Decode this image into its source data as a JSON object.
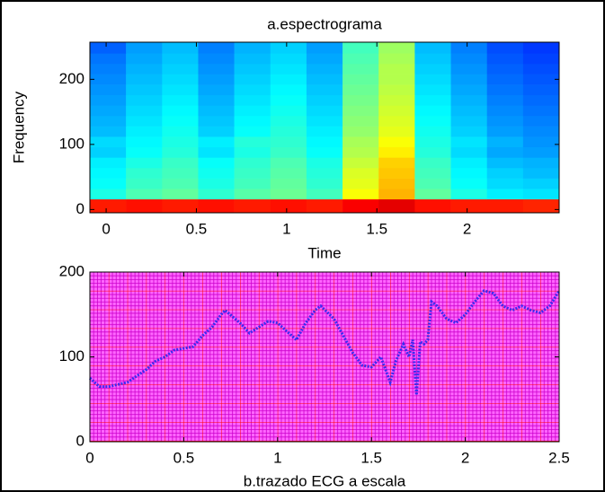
{
  "chart_data": [
    {
      "type": "heatmap",
      "title": "a.espectrograma",
      "xlabel": "Time",
      "ylabel": "Frequency",
      "x": [
        0.01,
        0.21,
        0.41,
        0.61,
        0.81,
        1.01,
        1.21,
        1.41,
        1.61,
        1.81,
        2.01,
        2.21,
        2.41
      ],
      "y": [
        8,
        24,
        40,
        56,
        72,
        88,
        104,
        120,
        136,
        152,
        168,
        184,
        200,
        216,
        232,
        248
      ],
      "z": [
        [
          0.85,
          0.86,
          0.85,
          0.86,
          0.85,
          0.86,
          0.85,
          0.88,
          0.9,
          0.86,
          0.85,
          0.85,
          0.84
        ],
        [
          0.4,
          0.45,
          0.47,
          0.42,
          0.46,
          0.48,
          0.44,
          0.62,
          0.7,
          0.47,
          0.4,
          0.36,
          0.35
        ],
        [
          0.38,
          0.43,
          0.45,
          0.4,
          0.44,
          0.47,
          0.42,
          0.6,
          0.69,
          0.45,
          0.38,
          0.34,
          0.33
        ],
        [
          0.37,
          0.42,
          0.44,
          0.39,
          0.43,
          0.46,
          0.41,
          0.59,
          0.68,
          0.44,
          0.37,
          0.33,
          0.31
        ],
        [
          0.36,
          0.4,
          0.43,
          0.38,
          0.42,
          0.45,
          0.4,
          0.57,
          0.67,
          0.43,
          0.36,
          0.31,
          0.3
        ],
        [
          0.33,
          0.38,
          0.41,
          0.35,
          0.4,
          0.43,
          0.38,
          0.55,
          0.64,
          0.41,
          0.34,
          0.29,
          0.28
        ],
        [
          0.34,
          0.37,
          0.4,
          0.36,
          0.41,
          0.42,
          0.37,
          0.54,
          0.62,
          0.4,
          0.35,
          0.3,
          0.27
        ],
        [
          0.31,
          0.36,
          0.39,
          0.33,
          0.38,
          0.41,
          0.36,
          0.52,
          0.6,
          0.39,
          0.33,
          0.28,
          0.26
        ],
        [
          0.3,
          0.35,
          0.38,
          0.32,
          0.37,
          0.4,
          0.35,
          0.51,
          0.59,
          0.38,
          0.32,
          0.27,
          0.25
        ],
        [
          0.29,
          0.34,
          0.37,
          0.31,
          0.36,
          0.39,
          0.34,
          0.5,
          0.58,
          0.37,
          0.31,
          0.26,
          0.24
        ],
        [
          0.28,
          0.33,
          0.36,
          0.3,
          0.35,
          0.38,
          0.33,
          0.49,
          0.57,
          0.36,
          0.3,
          0.25,
          0.23
        ],
        [
          0.27,
          0.32,
          0.35,
          0.29,
          0.34,
          0.37,
          0.32,
          0.48,
          0.56,
          0.35,
          0.29,
          0.24,
          0.22
        ],
        [
          0.26,
          0.31,
          0.34,
          0.28,
          0.33,
          0.36,
          0.31,
          0.47,
          0.55,
          0.34,
          0.28,
          0.23,
          0.21
        ],
        [
          0.25,
          0.3,
          0.33,
          0.27,
          0.32,
          0.35,
          0.3,
          0.46,
          0.55,
          0.33,
          0.27,
          0.22,
          0.2
        ],
        [
          0.24,
          0.29,
          0.32,
          0.26,
          0.31,
          0.34,
          0.29,
          0.45,
          0.54,
          0.32,
          0.26,
          0.21,
          0.19
        ],
        [
          0.22,
          0.28,
          0.31,
          0.25,
          0.3,
          0.33,
          0.28,
          0.44,
          0.53,
          0.31,
          0.25,
          0.2,
          0.18
        ]
      ],
      "colormap": "jet",
      "clim": [
        0,
        1
      ],
      "xlim": [
        -0.09,
        2.51
      ],
      "ylim": [
        -5,
        257
      ],
      "xticks": [
        0,
        0.5,
        1,
        1.5,
        2
      ],
      "yticks": [
        0,
        100,
        200
      ]
    },
    {
      "type": "line",
      "xlabel": "b.trazado ECG a escala",
      "x": [
        0,
        0.05,
        0.1,
        0.2,
        0.3,
        0.35,
        0.4,
        0.45,
        0.55,
        0.6,
        0.65,
        0.7,
        0.72,
        0.8,
        0.85,
        0.9,
        0.95,
        1.0,
        1.05,
        1.1,
        1.15,
        1.2,
        1.23,
        1.3,
        1.35,
        1.4,
        1.45,
        1.5,
        1.55,
        1.6,
        1.63,
        1.67,
        1.7,
        1.72,
        1.74,
        1.76,
        1.78,
        1.8,
        1.82,
        1.85,
        1.9,
        1.95,
        2.0,
        2.05,
        2.1,
        2.15,
        2.2,
        2.25,
        2.3,
        2.35,
        2.4,
        2.45,
        2.5
      ],
      "series": [
        {
          "color": "#3a2cf0",
          "values": [
            75,
            65,
            65,
            70,
            85,
            95,
            100,
            108,
            112,
            125,
            135,
            150,
            155,
            140,
            128,
            135,
            142,
            140,
            130,
            120,
            140,
            155,
            160,
            145,
            125,
            105,
            90,
            88,
            100,
            70,
            95,
            115,
            100,
            120,
            55,
            118,
            115,
            120,
            165,
            160,
            145,
            140,
            150,
            165,
            178,
            175,
            160,
            155,
            160,
            155,
            152,
            160,
            178
          ]
        }
      ],
      "xlim": [
        0,
        2.5
      ],
      "ylim": [
        0,
        200
      ],
      "xticks": [
        0,
        0.5,
        1,
        1.5,
        2,
        2.5
      ],
      "yticks": [
        0,
        100,
        200
      ]
    }
  ]
}
